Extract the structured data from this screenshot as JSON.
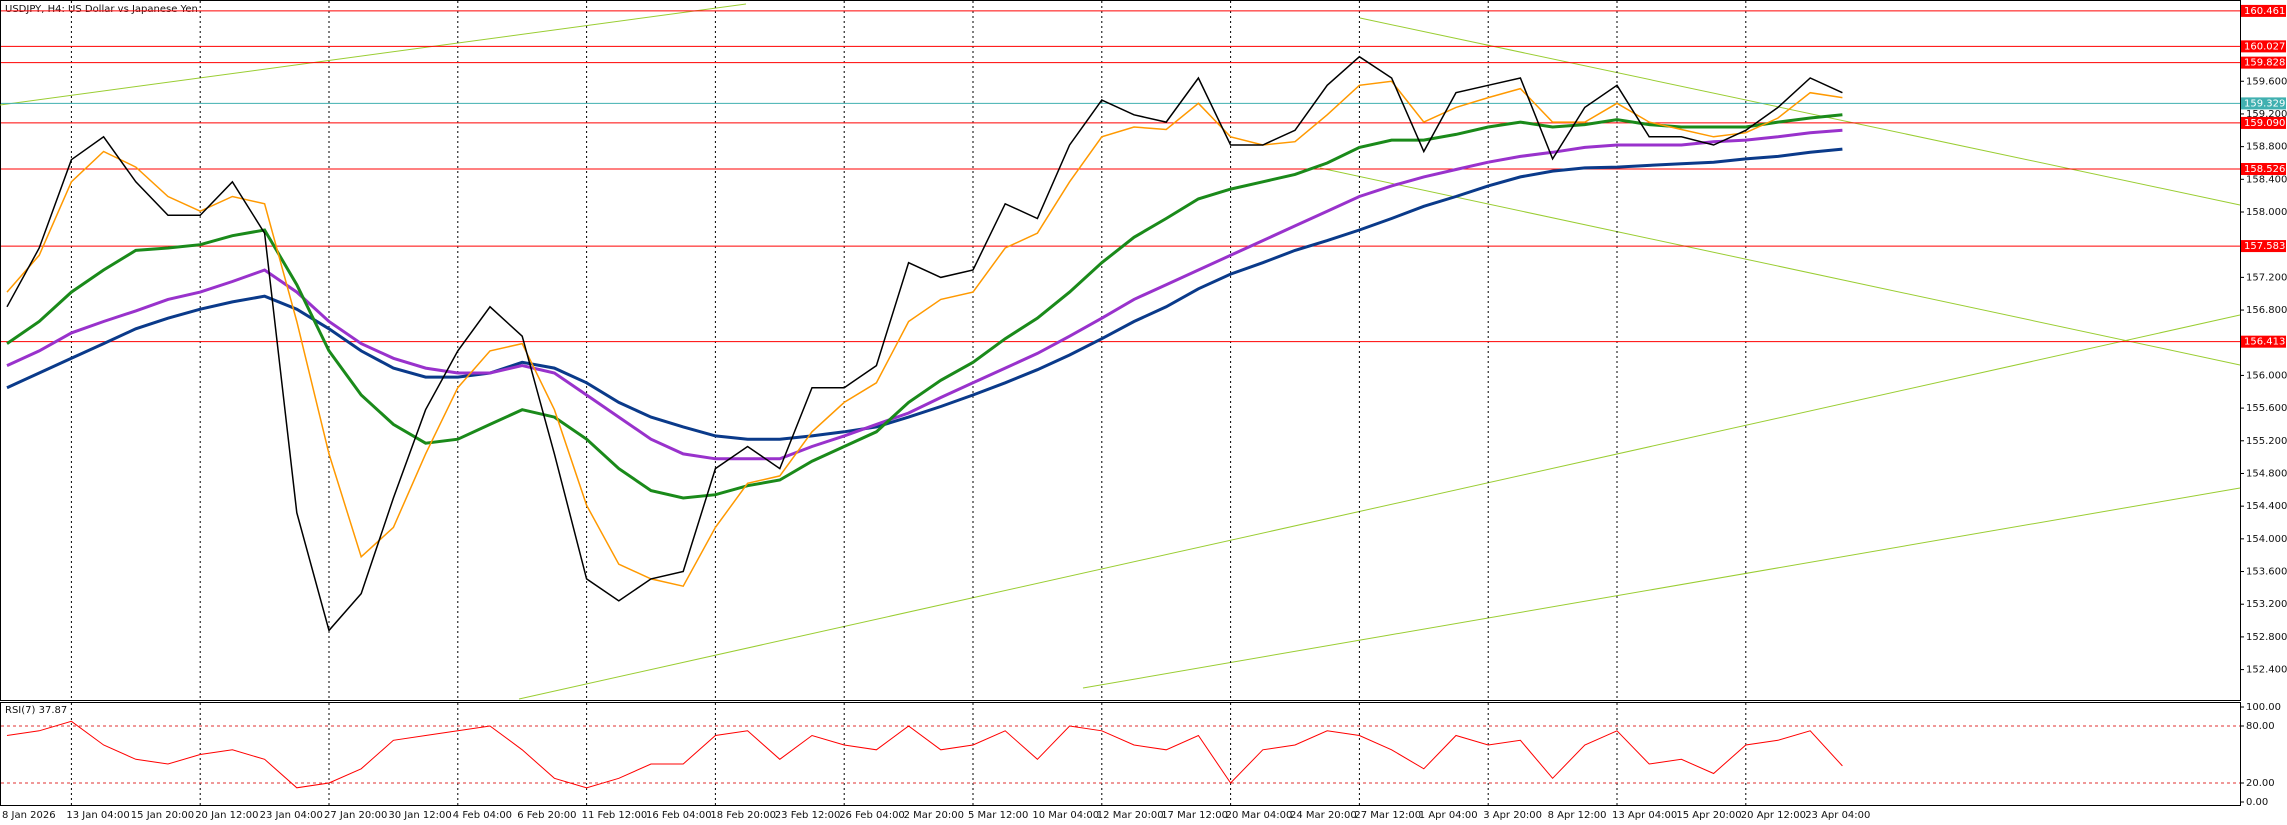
{
  "chart_data": [
    {
      "type": "line",
      "title": "USDJPY, H4:  US Dollar vs Japanese Yen",
      "categories": [
        "8 Jan 2026",
        null,
        "13 Jan 04:00",
        null,
        "15 Jan 20:00",
        null,
        "20 Jan 12:00",
        null,
        "23 Jan 04:00",
        null,
        "27 Jan 20:00",
        null,
        "30 Jan 12:00",
        null,
        "4 Feb 04:00",
        null,
        "6 Feb 20:00",
        null,
        "11 Feb 12:00",
        null,
        "16 Feb 04:00",
        null,
        "18 Feb 20:00",
        null,
        "23 Feb 12:00",
        null,
        "26 Feb 04:00",
        null,
        "2 Mar 20:00",
        null,
        "5 Mar 12:00",
        null,
        "10 Mar 04:00",
        null,
        "12 Mar 20:00",
        null,
        "17 Mar 12:00",
        null,
        "20 Mar 04:00",
        null,
        "24 Mar 20:00",
        null,
        "27 Mar 12:00",
        null,
        "1 Apr 04:00",
        null,
        "3 Apr 20:00",
        null,
        "8 Apr 12:00",
        null,
        "13 Apr 04:00",
        null,
        "15 Apr 20:00",
        null,
        "20 Apr 12:00",
        null,
        "23 Apr 04:00",
        null
      ],
      "series": [
        {
          "color": "#0a3a8a",
          "values": [
            155.85,
            156.03,
            156.21,
            156.39,
            156.57,
            156.7,
            156.81,
            156.9,
            156.97,
            156.81,
            156.57,
            156.3,
            156.09,
            155.98,
            155.98,
            156.03,
            156.16,
            156.09,
            155.91,
            155.67,
            155.49,
            155.37,
            155.26,
            155.22,
            155.22,
            155.26,
            155.31,
            155.37,
            155.49,
            155.62,
            155.76,
            155.91,
            156.07,
            156.25,
            156.45,
            156.66,
            156.84,
            157.06,
            157.24,
            157.38,
            157.53,
            157.65,
            157.78,
            157.92,
            158.07,
            158.19,
            158.32,
            158.43,
            158.5,
            158.54,
            158.55,
            158.57,
            158.59,
            158.61,
            158.65,
            158.68,
            158.73,
            158.77
          ]
        },
        {
          "color": "#9932cc",
          "values": [
            156.12,
            156.3,
            156.52,
            156.66,
            156.79,
            156.93,
            157.02,
            157.15,
            157.29,
            157.02,
            156.66,
            156.39,
            156.21,
            156.09,
            156.03,
            156.03,
            156.12,
            156.03,
            155.76,
            155.49,
            155.22,
            155.04,
            154.98,
            154.98,
            154.98,
            155.13,
            155.26,
            155.4,
            155.54,
            155.73,
            155.91,
            156.09,
            156.27,
            156.48,
            156.7,
            156.93,
            157.11,
            157.29,
            157.47,
            157.65,
            157.83,
            158.01,
            158.19,
            158.32,
            158.43,
            158.52,
            158.61,
            158.68,
            158.73,
            158.79,
            158.82,
            158.82,
            158.82,
            158.86,
            158.88,
            158.92,
            158.97,
            159.0
          ]
        },
        {
          "color": "#1a8a1a",
          "values": [
            156.39,
            156.66,
            157.02,
            157.29,
            157.53,
            157.56,
            157.6,
            157.71,
            157.78,
            157.11,
            156.3,
            155.76,
            155.4,
            155.17,
            155.22,
            155.4,
            155.58,
            155.49,
            155.22,
            154.86,
            154.59,
            154.5,
            154.54,
            154.65,
            154.72,
            154.95,
            155.13,
            155.31,
            155.67,
            155.94,
            156.16,
            156.45,
            156.7,
            157.02,
            157.38,
            157.69,
            157.92,
            158.16,
            158.28,
            158.37,
            158.46,
            158.6,
            158.79,
            158.88,
            158.88,
            158.95,
            159.04,
            159.1,
            159.04,
            159.07,
            159.13,
            159.07,
            159.04,
            159.04,
            159.04,
            159.1,
            159.15,
            159.19
          ]
        },
        {
          "color": "#ff9900",
          "values": [
            157.02,
            157.47,
            158.37,
            158.74,
            158.55,
            158.19,
            158.01,
            158.19,
            158.1,
            156.66,
            155.04,
            153.78,
            154.14,
            155.04,
            155.85,
            156.3,
            156.39,
            155.58,
            154.41,
            153.69,
            153.51,
            153.42,
            154.14,
            154.68,
            154.77,
            155.31,
            155.67,
            155.91,
            156.66,
            156.93,
            157.02,
            157.56,
            157.74,
            158.37,
            158.92,
            159.04,
            159.01,
            159.33,
            158.92,
            158.82,
            158.86,
            159.19,
            159.55,
            159.6,
            159.1,
            159.28,
            159.4,
            159.51,
            159.1,
            159.1,
            159.33,
            159.1,
            159.01,
            158.92,
            158.97,
            159.15,
            159.46,
            159.4
          ]
        },
        {
          "color": "#000000",
          "values": [
            156.84,
            157.56,
            158.64,
            158.92,
            158.37,
            157.96,
            157.96,
            158.37,
            157.74,
            154.32,
            152.88,
            153.33,
            154.5,
            155.58,
            156.3,
            156.84,
            156.48,
            155.04,
            153.51,
            153.24,
            153.51,
            153.6,
            154.86,
            155.13,
            154.86,
            155.85,
            155.85,
            156.12,
            157.38,
            157.2,
            157.29,
            158.1,
            157.92,
            158.82,
            159.37,
            159.19,
            159.1,
            159.64,
            158.82,
            158.82,
            159.0,
            159.55,
            159.9,
            159.64,
            158.74,
            159.46,
            159.55,
            159.64,
            158.65,
            159.28,
            159.55,
            158.92,
            158.92,
            158.82,
            159.0,
            159.28,
            159.64,
            159.46
          ]
        }
      ],
      "ylim": [
        152.04,
        160.57
      ],
      "yticks": [
        {
          "value": 152.4,
          "label": "152.400"
        },
        {
          "value": 152.8,
          "label": "152.800"
        },
        {
          "value": 153.2,
          "label": "153.200"
        },
        {
          "value": 153.6,
          "label": "153.600"
        },
        {
          "value": 154,
          "label": "154.000"
        },
        {
          "value": 154.4,
          "label": "154.400"
        },
        {
          "value": 154.8,
          "label": "154.800"
        },
        {
          "value": 155.2,
          "label": "155.200"
        },
        {
          "value": 155.6,
          "label": "155.600"
        },
        {
          "value": 156,
          "label": "156.000"
        },
        {
          "value": 156.8,
          "label": "156.800"
        },
        {
          "value": 157.2,
          "label": "157.200"
        },
        {
          "value": 158,
          "label": "158.000"
        },
        {
          "value": 158.4,
          "label": "158.400"
        },
        {
          "value": 158.8,
          "label": "158.800"
        },
        {
          "value": 159.2,
          "label": "159.200"
        },
        {
          "value": 159.6,
          "label": "159.600"
        }
      ],
      "levels": [
        160.461,
        160.027,
        159.828,
        {
          "value": 159.09,
          "label": "159.090"
        },
        158.526,
        157.583,
        156.413
      ],
      "level_color": "#ff0000",
      "current_price": 159.329,
      "current_color": "#40b0b0",
      "grid": true
    },
    {
      "type": "line",
      "title": "RSI(7) 37.87",
      "series": [
        {
          "color": "#ff0000",
          "values": [
            70,
            75,
            85,
            60,
            45,
            40,
            50,
            55,
            45,
            15,
            20,
            35,
            65,
            70,
            75,
            80,
            55,
            25,
            15,
            25,
            40,
            40,
            70,
            75,
            45,
            70,
            60,
            55,
            80,
            55,
            60,
            75,
            45,
            80,
            75,
            60,
            55,
            70,
            20,
            55,
            60,
            75,
            70,
            55,
            35,
            70,
            60,
            65,
            25,
            60,
            75,
            40,
            45,
            30,
            60,
            65,
            75,
            38
          ]
        }
      ],
      "ylim": [
        0,
        100
      ],
      "yticks": [
        {
          "value": 0,
          "label": "0.00"
        },
        {
          "value": 20,
          "label": "20.00"
        },
        {
          "value": 80,
          "label": "80.00"
        },
        {
          "value": 100,
          "label": "100.00"
        }
      ]
    }
  ]
}
